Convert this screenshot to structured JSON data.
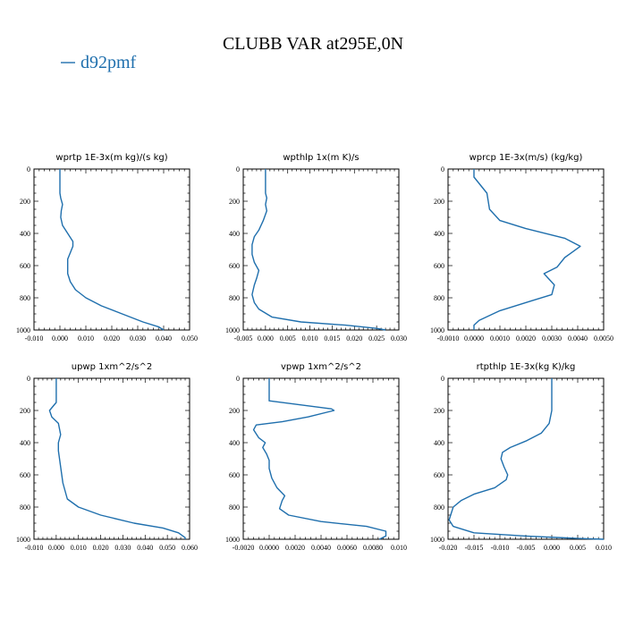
{
  "figure": {
    "title": "CLUBB VAR at295E,0N",
    "legend": [
      {
        "label": "d92pmf",
        "color": "#1f6fad"
      }
    ]
  },
  "colors": {
    "series": "#1f6fad",
    "axes": "#000000",
    "background": "#ffffff"
  },
  "chart_data": [
    {
      "type": "line",
      "title": "wprtp  1E-3x(m kg)/(s kg)",
      "xlim": [
        -0.01,
        0.05
      ],
      "ylim": [
        1000,
        0
      ],
      "xticks": [
        "-0.010",
        "0.000",
        "0.010",
        "0.020",
        "0.030",
        "0.040",
        "0.050"
      ],
      "xtick_values": [
        -0.01,
        0.0,
        0.01,
        0.02,
        0.03,
        0.04,
        0.05
      ],
      "yticks": [
        "0",
        "200",
        "400",
        "600",
        "800",
        "1000"
      ],
      "series": [
        {
          "label": "d92pmf",
          "x": [
            0.0,
            0.0,
            0.0,
            0.0003,
            0.001,
            0.0005,
            0.0003,
            0.001,
            0.003,
            0.005,
            0.005,
            0.004,
            0.003,
            0.003,
            0.003,
            0.004,
            0.006,
            0.01,
            0.016,
            0.024,
            0.032,
            0.038,
            0.04
          ],
          "y": [
            0,
            50,
            150,
            180,
            220,
            260,
            300,
            350,
            400,
            450,
            480,
            520,
            560,
            600,
            650,
            700,
            750,
            800,
            850,
            900,
            950,
            980,
            1000
          ]
        }
      ]
    },
    {
      "type": "line",
      "title": "wpthlp  1x(m K)/s",
      "xlim": [
        -0.005,
        0.03
      ],
      "ylim": [
        1000,
        0
      ],
      "xticks": [
        "-0.005",
        "0.000",
        "0.005",
        "0.010",
        "0.015",
        "0.020",
        "0.025",
        "0.030"
      ],
      "xtick_values": [
        -0.005,
        0.0,
        0.005,
        0.01,
        0.015,
        0.02,
        0.025,
        0.03
      ],
      "yticks": [
        "0",
        "200",
        "400",
        "600",
        "800",
        "1000"
      ],
      "series": [
        {
          "label": "d92pmf",
          "x": [
            0.0,
            0.0,
            0.0,
            0.0003,
            0.0,
            0.0003,
            -0.0005,
            -0.0015,
            -0.0025,
            -0.003,
            -0.003,
            -0.0025,
            -0.0015,
            -0.002,
            -0.0025,
            -0.003,
            -0.0025,
            -0.0015,
            0.0015,
            0.008,
            0.018,
            0.025,
            0.027
          ],
          "y": [
            0,
            100,
            150,
            180,
            220,
            260,
            320,
            380,
            420,
            470,
            530,
            580,
            630,
            680,
            720,
            780,
            830,
            870,
            920,
            950,
            970,
            990,
            1000
          ]
        }
      ]
    },
    {
      "type": "line",
      "title": "wprcp  1E-3x(m/s) (kg/kg)",
      "xlim": [
        -0.001,
        0.005
      ],
      "ylim": [
        1000,
        0
      ],
      "xticks": [
        "-0.0010",
        "0.0000",
        "0.0010",
        "0.0020",
        "0.0030",
        "0.0040",
        "0.0050"
      ],
      "xtick_values": [
        -0.001,
        0.0,
        0.001,
        0.002,
        0.003,
        0.004,
        0.005
      ],
      "yticks": [
        "0",
        "200",
        "400",
        "600",
        "800",
        "1000"
      ],
      "series": [
        {
          "label": "d92pmf",
          "x": [
            0.0,
            0.0,
            0.0005,
            0.0006,
            0.001,
            0.002,
            0.0035,
            0.0041,
            0.0035,
            0.0032,
            0.0027,
            0.0031,
            0.003,
            0.0022,
            0.001,
            0.0002,
            0.0,
            0.0
          ],
          "y": [
            0,
            50,
            150,
            250,
            320,
            370,
            430,
            480,
            550,
            610,
            650,
            720,
            780,
            820,
            880,
            940,
            970,
            1000
          ]
        }
      ]
    },
    {
      "type": "line",
      "title": "upwp  1xm^2/s^2",
      "xlim": [
        -0.01,
        0.06
      ],
      "ylim": [
        1000,
        0
      ],
      "xticks": [
        "-0.010",
        "0.000",
        "0.010",
        "0.020",
        "0.030",
        "0.040",
        "0.050",
        "0.060"
      ],
      "xtick_values": [
        -0.01,
        0.0,
        0.01,
        0.02,
        0.03,
        0.04,
        0.05,
        0.06
      ],
      "yticks": [
        "0",
        "200",
        "400",
        "600",
        "800",
        "1000"
      ],
      "series": [
        {
          "label": "d92pmf",
          "x": [
            0.0,
            0.0,
            0.0,
            -0.003,
            -0.002,
            0.001,
            0.002,
            0.001,
            0.001,
            0.002,
            0.003,
            0.005,
            0.01,
            0.02,
            0.035,
            0.048,
            0.055,
            0.058,
            0.058
          ],
          "y": [
            0,
            80,
            150,
            200,
            240,
            280,
            350,
            400,
            450,
            550,
            650,
            750,
            800,
            850,
            900,
            930,
            960,
            990,
            1000
          ]
        }
      ]
    },
    {
      "type": "line",
      "title": "vpwp  1xm^2/s^2",
      "xlim": [
        -0.002,
        0.01
      ],
      "ylim": [
        1000,
        0
      ],
      "xticks": [
        "-0.0020",
        "0.0000",
        "0.0020",
        "0.0040",
        "0.0060",
        "0.0080",
        "0.010"
      ],
      "xtick_values": [
        -0.002,
        0.0,
        0.002,
        0.004,
        0.006,
        0.008,
        0.01
      ],
      "yticks": [
        "0",
        "200",
        "400",
        "600",
        "800",
        "1000"
      ],
      "series": [
        {
          "label": "d92pmf",
          "x": [
            0.0,
            0.0,
            0.0,
            0.0,
            0.0048,
            0.005,
            0.003,
            0.001,
            -0.001,
            -0.0012,
            -0.0008,
            -0.0003,
            -0.0005,
            -0.0002,
            0.0,
            0.0,
            0.0002,
            0.0006,
            0.0012,
            0.001,
            0.0008,
            0.0015,
            0.004,
            0.0075,
            0.009,
            0.009,
            0.0085
          ],
          "y": [
            0,
            60,
            120,
            140,
            190,
            200,
            240,
            270,
            290,
            320,
            370,
            400,
            430,
            470,
            510,
            560,
            620,
            680,
            730,
            760,
            810,
            850,
            890,
            920,
            950,
            980,
            1000
          ]
        }
      ]
    },
    {
      "type": "line",
      "title": "rtpthlp  1E-3x(kg K)/kg",
      "xlim": [
        -0.02,
        0.01
      ],
      "ylim": [
        1000,
        0
      ],
      "xticks": [
        "-0.020",
        "-0.015",
        "-0.010",
        "-0.005",
        "0.000",
        "0.005",
        "0.010"
      ],
      "xtick_values": [
        -0.02,
        -0.015,
        -0.01,
        -0.005,
        0.0,
        0.005,
        0.01
      ],
      "yticks": [
        "0",
        "200",
        "400",
        "600",
        "800",
        "1000"
      ],
      "series": [
        {
          "label": "d92pmf",
          "x": [
            0.0,
            0.0,
            0.0,
            -0.0005,
            -0.002,
            -0.005,
            -0.008,
            -0.0095,
            -0.0098,
            -0.0092,
            -0.0085,
            -0.0088,
            -0.011,
            -0.015,
            -0.0175,
            -0.019,
            -0.0198,
            -0.019,
            -0.015,
            -0.005,
            0.005,
            0.01
          ],
          "y": [
            0,
            100,
            200,
            280,
            340,
            390,
            430,
            460,
            500,
            550,
            600,
            630,
            680,
            720,
            760,
            800,
            880,
            920,
            960,
            980,
            995,
            1000
          ]
        }
      ]
    }
  ]
}
